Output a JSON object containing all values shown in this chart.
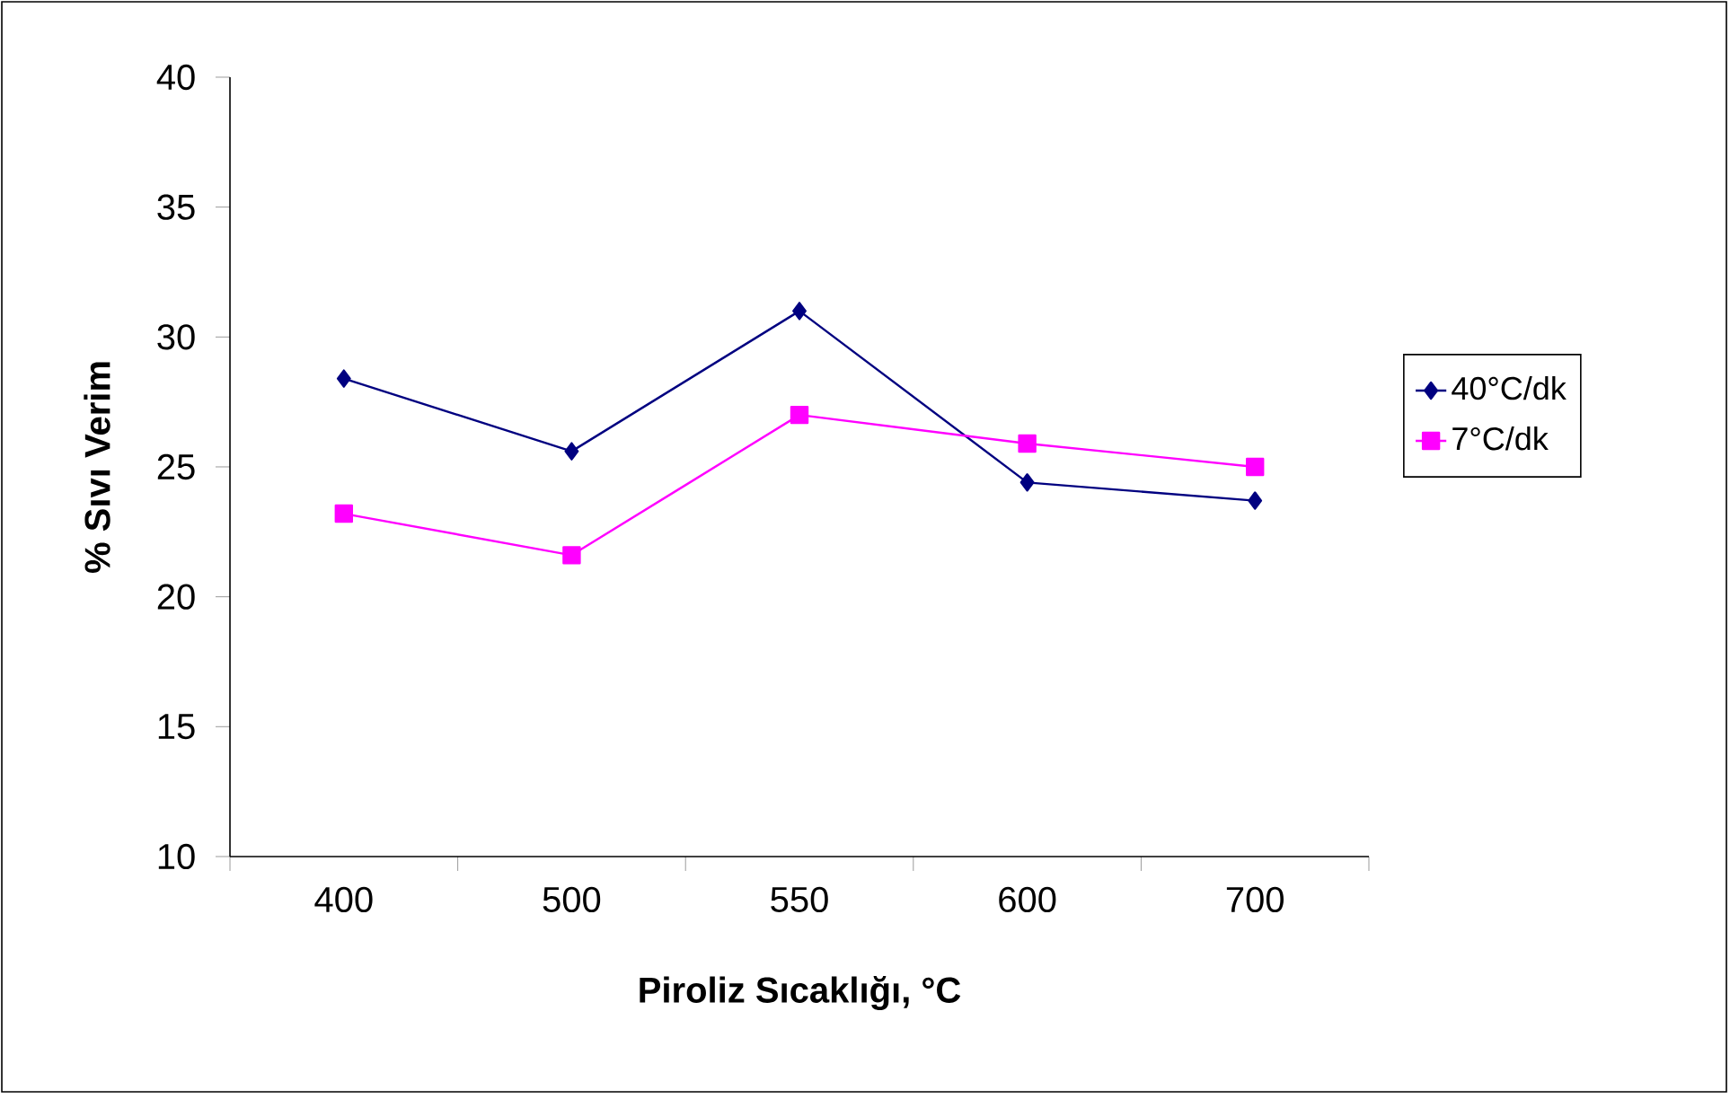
{
  "chart_data": {
    "type": "line",
    "xlabel": "Piroliz Sıcaklığı, °C",
    "ylabel": "% Sıvı Verim",
    "categories": [
      "400",
      "500",
      "550",
      "600",
      "700"
    ],
    "series": [
      {
        "name": "40°C/dk",
        "color": "#000080",
        "marker": "diamond",
        "values": [
          28.4,
          25.6,
          31.0,
          24.4,
          23.7
        ]
      },
      {
        "name": "7°C/dk",
        "color": "#ff00ff",
        "marker": "square",
        "values": [
          23.2,
          21.6,
          27.0,
          25.9,
          25.0
        ]
      }
    ],
    "ylim": [
      10,
      40
    ],
    "yticks": [
      10,
      15,
      20,
      25,
      30,
      35,
      40
    ],
    "grid": false,
    "legend": "right",
    "line_style": "solid"
  }
}
